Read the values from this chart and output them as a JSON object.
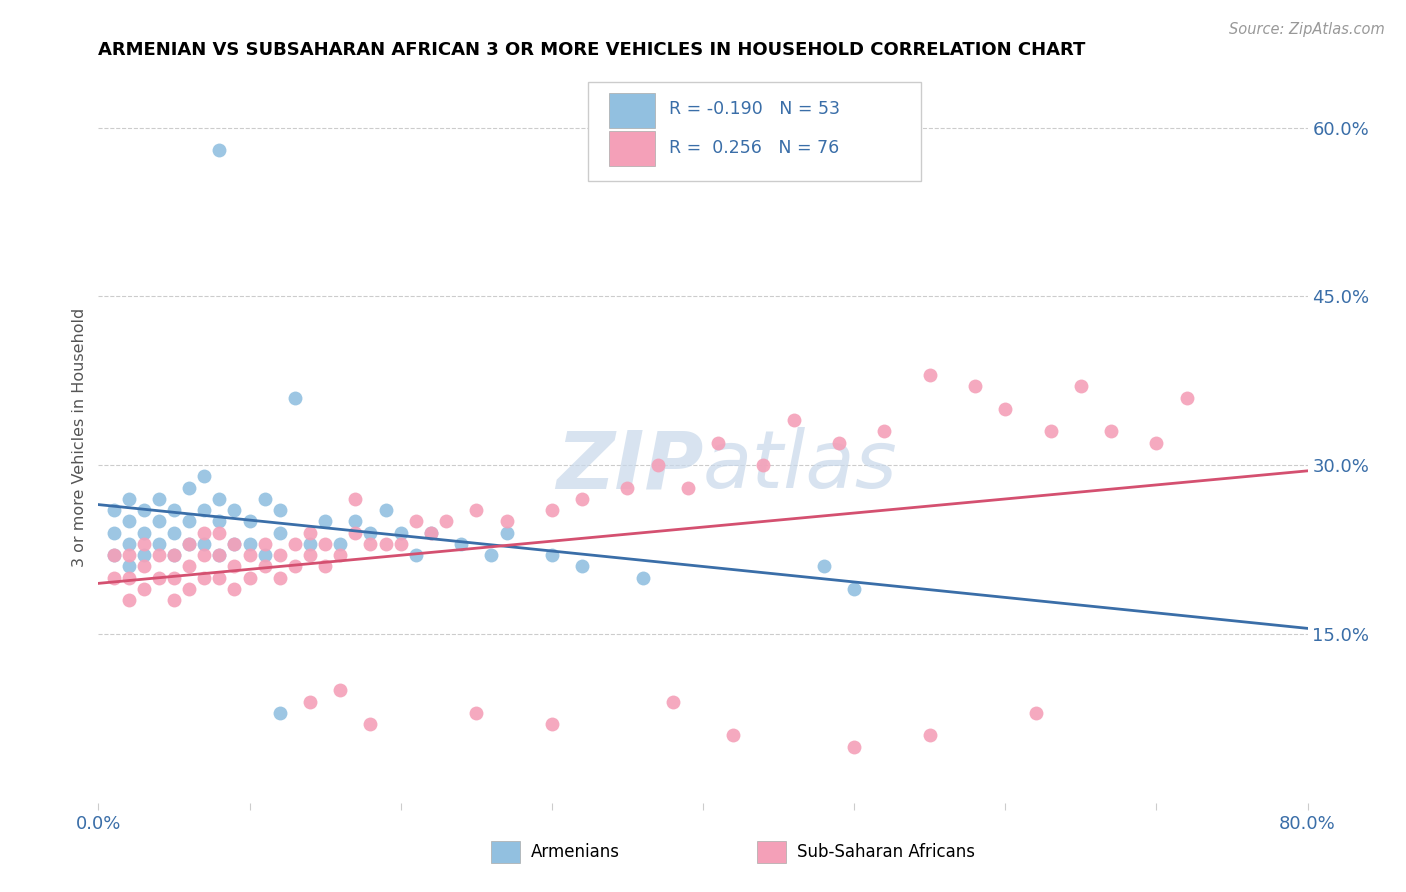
{
  "title": "ARMENIAN VS SUBSAHARAN AFRICAN 3 OR MORE VEHICLES IN HOUSEHOLD CORRELATION CHART",
  "source_text": "Source: ZipAtlas.com",
  "ylabel": "3 or more Vehicles in Household",
  "xlim": [
    0.0,
    0.8
  ],
  "ylim": [
    0.0,
    0.65
  ],
  "ytick_labels_right": [
    "15.0%",
    "30.0%",
    "45.0%",
    "60.0%"
  ],
  "yticks_right": [
    0.15,
    0.3,
    0.45,
    0.6
  ],
  "armenian_color": "#92C0E0",
  "subsaharan_color": "#F4A0B8",
  "armenian_line_color": "#3A6EA8",
  "subsaharan_line_color": "#D45070",
  "background_color": "#FFFFFF",
  "watermark_color": "#C8D8EA",
  "legend_label_armenian": "Armenians",
  "legend_label_subsaharan": "Sub-Saharan Africans",
  "armenian_x": [
    0.01,
    0.01,
    0.01,
    0.02,
    0.02,
    0.02,
    0.02,
    0.03,
    0.03,
    0.03,
    0.04,
    0.04,
    0.04,
    0.05,
    0.05,
    0.05,
    0.06,
    0.06,
    0.06,
    0.07,
    0.07,
    0.07,
    0.08,
    0.08,
    0.08,
    0.09,
    0.09,
    0.1,
    0.1,
    0.11,
    0.11,
    0.12,
    0.12,
    0.13,
    0.14,
    0.15,
    0.16,
    0.17,
    0.18,
    0.19,
    0.2,
    0.21,
    0.22,
    0.24,
    0.26,
    0.27,
    0.3,
    0.32,
    0.36,
    0.48,
    0.5,
    0.12,
    0.08
  ],
  "armenian_y": [
    0.22,
    0.24,
    0.26,
    0.21,
    0.23,
    0.25,
    0.27,
    0.22,
    0.24,
    0.26,
    0.23,
    0.25,
    0.27,
    0.22,
    0.24,
    0.26,
    0.23,
    0.25,
    0.28,
    0.23,
    0.26,
    0.29,
    0.22,
    0.25,
    0.27,
    0.23,
    0.26,
    0.23,
    0.25,
    0.22,
    0.27,
    0.24,
    0.26,
    0.36,
    0.23,
    0.25,
    0.23,
    0.25,
    0.24,
    0.26,
    0.24,
    0.22,
    0.24,
    0.23,
    0.22,
    0.24,
    0.22,
    0.21,
    0.2,
    0.21,
    0.19,
    0.08,
    0.58
  ],
  "subsaharan_x": [
    0.01,
    0.01,
    0.02,
    0.02,
    0.02,
    0.03,
    0.03,
    0.03,
    0.04,
    0.04,
    0.05,
    0.05,
    0.05,
    0.06,
    0.06,
    0.06,
    0.07,
    0.07,
    0.07,
    0.08,
    0.08,
    0.08,
    0.09,
    0.09,
    0.09,
    0.1,
    0.1,
    0.11,
    0.11,
    0.12,
    0.12,
    0.13,
    0.13,
    0.14,
    0.14,
    0.15,
    0.15,
    0.16,
    0.17,
    0.17,
    0.18,
    0.19,
    0.2,
    0.21,
    0.22,
    0.23,
    0.25,
    0.27,
    0.3,
    0.32,
    0.35,
    0.37,
    0.39,
    0.41,
    0.44,
    0.46,
    0.49,
    0.52,
    0.55,
    0.58,
    0.6,
    0.63,
    0.65,
    0.67,
    0.7,
    0.72,
    0.14,
    0.16,
    0.18,
    0.25,
    0.3,
    0.38,
    0.42,
    0.5,
    0.55,
    0.62
  ],
  "subsaharan_y": [
    0.2,
    0.22,
    0.18,
    0.2,
    0.22,
    0.19,
    0.21,
    0.23,
    0.2,
    0.22,
    0.18,
    0.2,
    0.22,
    0.19,
    0.21,
    0.23,
    0.2,
    0.22,
    0.24,
    0.2,
    0.22,
    0.24,
    0.19,
    0.21,
    0.23,
    0.2,
    0.22,
    0.21,
    0.23,
    0.2,
    0.22,
    0.21,
    0.23,
    0.22,
    0.24,
    0.21,
    0.23,
    0.22,
    0.24,
    0.27,
    0.23,
    0.23,
    0.23,
    0.25,
    0.24,
    0.25,
    0.26,
    0.25,
    0.26,
    0.27,
    0.28,
    0.3,
    0.28,
    0.32,
    0.3,
    0.34,
    0.32,
    0.33,
    0.38,
    0.37,
    0.35,
    0.33,
    0.37,
    0.33,
    0.32,
    0.36,
    0.09,
    0.1,
    0.07,
    0.08,
    0.07,
    0.09,
    0.06,
    0.05,
    0.06,
    0.08
  ],
  "arm_line_x0": 0.0,
  "arm_line_y0": 0.265,
  "arm_line_x1": 0.8,
  "arm_line_y1": 0.155,
  "sub_line_x0": 0.0,
  "sub_line_y0": 0.195,
  "sub_line_x1": 0.8,
  "sub_line_y1": 0.295
}
